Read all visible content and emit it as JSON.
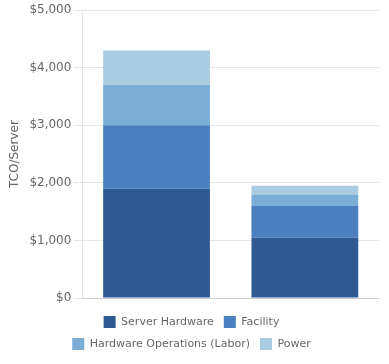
{
  "chart_data": {
    "type": "bar",
    "stacked": true,
    "categories": [
      null,
      null
    ],
    "series": [
      {
        "name": "Server Hardware",
        "color": "#2E5A94",
        "values": [
          1900,
          1050
        ]
      },
      {
        "name": "Facility",
        "color": "#4A7FC0",
        "values": [
          1100,
          550
        ]
      },
      {
        "name": "Hardware Operations (Labor)",
        "color": "#7AAED6",
        "values": [
          700,
          200
        ]
      },
      {
        "name": "Power",
        "color": "#AACCE0",
        "values": [
          600,
          150
        ]
      }
    ],
    "ylabel": "TCO/Server",
    "ylim": [
      0,
      5000
    ],
    "yticks": [
      {
        "value": 0,
        "label": "$0"
      },
      {
        "value": 1000,
        "label": "$1,000"
      },
      {
        "value": 2000,
        "label": "$2,000"
      },
      {
        "value": 3000,
        "label": "$3,000"
      },
      {
        "value": 4000,
        "label": "$4,000"
      },
      {
        "value": 5000,
        "label": "$5,000"
      }
    ],
    "grid": true,
    "legend": "bottom",
    "tick_labels": "y"
  }
}
